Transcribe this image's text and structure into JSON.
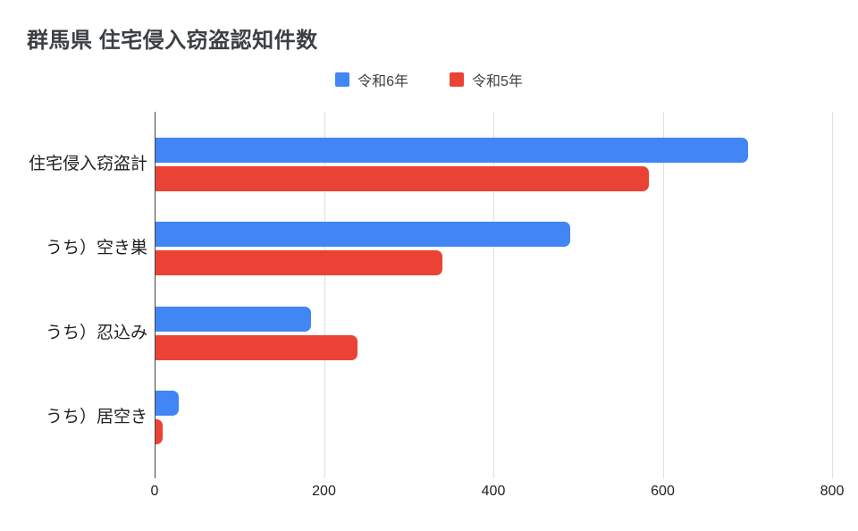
{
  "chart_data": {
    "type": "bar",
    "orientation": "horizontal",
    "title": "群馬県 住宅侵入窃盗認知件数",
    "categories": [
      "住宅侵入窃盗計",
      "うち）空き巣",
      "うち）忍込み",
      "うち）居空き"
    ],
    "series": [
      {
        "name": "令和6年",
        "color": "#4285F4",
        "values": [
          700,
          490,
          184,
          27
        ]
      },
      {
        "name": "令和5年",
        "color": "#EA4335",
        "values": [
          583,
          339,
          238,
          8
        ]
      }
    ],
    "xlabel": "",
    "ylabel": "",
    "xlim": [
      0,
      800
    ],
    "x_ticks": [
      0,
      200,
      400,
      600,
      800
    ],
    "grid": true,
    "legend_position": "top-center",
    "background": "#ffffff"
  }
}
